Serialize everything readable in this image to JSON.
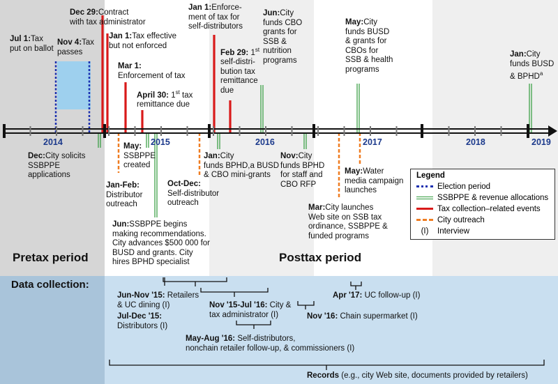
{
  "timeline": {
    "years": [
      "2014",
      "2015",
      "2016",
      "2017",
      "2018",
      "2019"
    ],
    "periods": {
      "pretax": "Pretax period",
      "posttax": "Posttax period"
    },
    "events": [
      {
        "id": "e1",
        "date": "Jul 1:",
        "text": "Tax\nput on ballot"
      },
      {
        "id": "e2",
        "date": "Nov 4:",
        "text": "Tax\npasses"
      },
      {
        "id": "e3",
        "date": "Dec 29:",
        "text": "Contract\nwith tax administrator"
      },
      {
        "id": "e4",
        "date": "Jan 1:",
        "text": "Tax effective\nbut not enforced"
      },
      {
        "id": "e5",
        "date": "Mar 1:",
        "text": "\nEnforcement of tax"
      },
      {
        "id": "e6",
        "date": "April 30:",
        "text": "1st tax\nremittance due"
      },
      {
        "id": "e7",
        "date": "Jan 1:",
        "text": "Enforce-\nment of tax for\nself-distributors"
      },
      {
        "id": "e8",
        "date": "Feb 29:",
        "text": "1st\nself-distri-\nbution tax\nremittance\ndue"
      },
      {
        "id": "e9",
        "date": "Jun:",
        "text": "City\nfunds CBO\ngrants for\nSSB &\nnutrition\nprograms"
      },
      {
        "id": "e10",
        "date": "May:",
        "text": "City\nfunds BUSD\n& grants for\nCBOs for\nSSB & health\nprograms"
      },
      {
        "id": "e11",
        "date": "Jan:",
        "text": "City\nfunds BUSD\n& BPHDa"
      },
      {
        "id": "e12",
        "date": "Dec:",
        "text": "City solicits\nSSBPPE\napplications"
      },
      {
        "id": "e13",
        "date": "May:",
        "text": "\nSSBPPE\ncreated"
      },
      {
        "id": "e14",
        "date": "Jan-Feb:",
        "text": "\nDistributor\noutreach"
      },
      {
        "id": "e15",
        "date": "Jun:",
        "text": "SSBPPE begins\nmaking recommendations.\nCity advances $500 000 for\nBUSD and grants. City\nhires BPHD specialist"
      },
      {
        "id": "e16",
        "date": "Oct-Dec:",
        "text": "\nSelf-distributor\noutreach"
      },
      {
        "id": "e17",
        "date": "Jan:",
        "text": "City\nfunds BPHD,a BUSD\n& CBO mini-grants"
      },
      {
        "id": "e18",
        "date": "Nov:",
        "text": "City\nfunds BPHD\nfor staff and\nCBO RFP"
      },
      {
        "id": "e19",
        "date": "May:",
        "text": "Water\nmedia campaign\nlaunches"
      },
      {
        "id": "e20",
        "date": "Mar:",
        "text": "City launches\nWeb site on SSB tax\nordinance, SSBPPE &\nfunded programs"
      }
    ]
  },
  "legend": {
    "title": "Legend",
    "items": [
      {
        "label": "Election period",
        "color": "#1a2fb0"
      },
      {
        "label": "SSBPPE & revenue allocations",
        "color": "#2e9a3a"
      },
      {
        "label": "Tax collection–related events",
        "color": "#d91a1a"
      },
      {
        "label": "City outreach",
        "color": "#ef7d22"
      },
      {
        "label": "Interview",
        "marker": "(I)"
      }
    ]
  },
  "data_collection": {
    "heading": "Data collection:",
    "items": [
      {
        "id": "d1",
        "date": "Jun-Nov '15:",
        "text": "Retailers\n& UC dining (I)"
      },
      {
        "id": "d2",
        "date": "Jul-Dec '15:",
        "text": "\nDistributors (I)"
      },
      {
        "id": "d3",
        "date": "Nov '15-Jul '16:",
        "text": "City &\ntax administrator (I)"
      },
      {
        "id": "d4",
        "date": "Apr '17:",
        "text": "UC follow-up (I)"
      },
      {
        "id": "d5",
        "date": "Nov '16:",
        "text": "Chain supermarket (I)"
      },
      {
        "id": "d6",
        "date": "May-Aug '16:",
        "text": "Self-distributors,\nnonchain retailer follow-up, & commissioners (I)"
      },
      {
        "id": "d7",
        "date": "Records",
        "text": "(e.g., city Web site, documents provided by retailers)"
      }
    ]
  }
}
